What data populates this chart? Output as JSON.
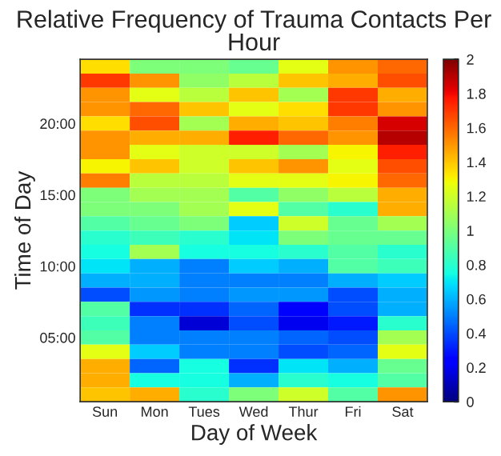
{
  "chart_data": {
    "type": "heatmap",
    "title": "Relative Frequency of Trauma Contacts Per Hour",
    "xlabel": "Day of Week",
    "ylabel": "Time of Day",
    "categories": [
      "Sun",
      "Mon",
      "Tues",
      "Wed",
      "Thur",
      "Fri",
      "Sat"
    ],
    "y_categories": [
      null,
      null,
      null,
      null,
      "20:00",
      null,
      null,
      null,
      null,
      "15:00",
      null,
      null,
      null,
      null,
      "10:00",
      null,
      null,
      null,
      null,
      "05:00",
      null,
      null,
      null,
      null
    ],
    "cells": [
      [
        1.35,
        1.0,
        1.0,
        0.95,
        1.25,
        1.5,
        1.6
      ],
      [
        1.7,
        1.5,
        1.05,
        1.15,
        1.4,
        1.45,
        1.65
      ],
      [
        1.5,
        1.25,
        1.15,
        1.4,
        1.1,
        1.7,
        1.45
      ],
      [
        1.5,
        1.6,
        1.4,
        1.25,
        1.35,
        1.7,
        1.5
      ],
      [
        1.35,
        1.65,
        1.1,
        1.45,
        1.4,
        1.55,
        1.85
      ],
      [
        1.5,
        1.45,
        1.45,
        1.75,
        1.6,
        1.5,
        1.9
      ],
      [
        1.5,
        1.25,
        1.2,
        1.2,
        1.1,
        1.3,
        1.75
      ],
      [
        1.3,
        1.4,
        1.2,
        1.4,
        1.5,
        1.25,
        1.65
      ],
      [
        1.55,
        1.15,
        1.15,
        1.25,
        1.25,
        1.3,
        1.6
      ],
      [
        1.0,
        1.1,
        1.1,
        0.9,
        1.05,
        1.15,
        1.45
      ],
      [
        1.0,
        1.0,
        1.1,
        1.25,
        0.9,
        0.8,
        1.45
      ],
      [
        0.9,
        0.95,
        1.0,
        0.65,
        1.2,
        0.95,
        1.1
      ],
      [
        0.8,
        0.85,
        0.8,
        0.7,
        1.0,
        0.95,
        0.95
      ],
      [
        0.75,
        1.1,
        0.75,
        0.75,
        0.8,
        0.9,
        0.8
      ],
      [
        0.7,
        0.6,
        0.5,
        0.65,
        0.6,
        0.9,
        0.85
      ],
      [
        0.6,
        0.6,
        0.5,
        0.5,
        0.5,
        0.6,
        0.65
      ],
      [
        0.4,
        0.55,
        0.5,
        0.55,
        0.55,
        0.4,
        0.6
      ],
      [
        0.9,
        0.35,
        0.35,
        0.45,
        0.25,
        0.4,
        0.6
      ],
      [
        0.85,
        0.5,
        0.15,
        0.4,
        0.2,
        0.3,
        0.8
      ],
      [
        0.9,
        0.5,
        0.5,
        0.5,
        0.45,
        0.4,
        1.1
      ],
      [
        1.25,
        0.65,
        0.5,
        0.5,
        0.4,
        0.45,
        1.25
      ],
      [
        1.45,
        0.45,
        0.75,
        0.35,
        0.7,
        0.6,
        0.95
      ],
      [
        1.45,
        0.75,
        0.75,
        0.6,
        0.8,
        0.75,
        0.9
      ],
      [
        1.4,
        1.45,
        0.8,
        1.0,
        1.2,
        0.9,
        1.5
      ]
    ],
    "clim": [
      0,
      2
    ],
    "cticks": [
      0,
      0.2,
      0.4,
      0.6,
      0.8,
      1,
      1.2,
      1.4,
      1.6,
      1.8,
      2
    ]
  }
}
